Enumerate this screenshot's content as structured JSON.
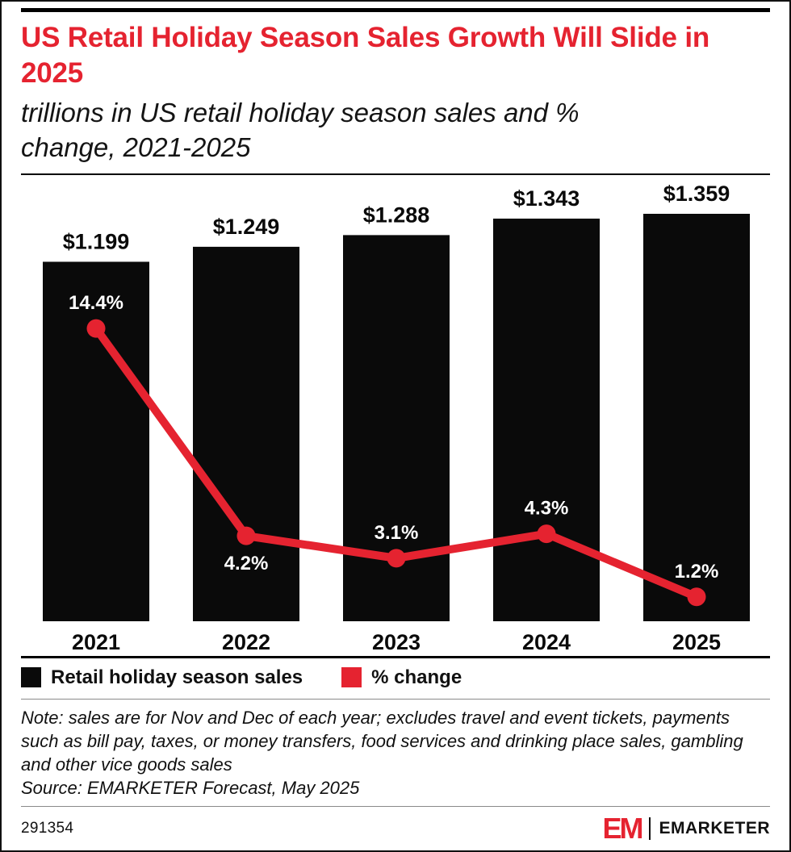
{
  "header": {
    "title": "US Retail Holiday Season Sales Growth Will Slide in 2025",
    "subtitle": "trillions in US retail holiday season sales and % change, 2021-2025"
  },
  "chart_data": {
    "type": "bar",
    "title": "US Retail Holiday Season Sales Growth Will Slide in 2025",
    "subtitle": "trillions in US retail holiday season sales and % change, 2021-2025",
    "categories": [
      "2021",
      "2022",
      "2023",
      "2024",
      "2025"
    ],
    "series": [
      {
        "name": "Retail holiday season sales",
        "type": "bar",
        "unit": "trillions of US dollars",
        "values": [
          1.199,
          1.249,
          1.288,
          1.343,
          1.359
        ],
        "labels": [
          "$1.199",
          "$1.249",
          "$1.288",
          "$1.343",
          "$1.359"
        ],
        "color": "#0a0a0a"
      },
      {
        "name": "% change",
        "type": "line",
        "unit": "percent",
        "values": [
          14.4,
          4.2,
          3.1,
          4.3,
          1.2
        ],
        "labels": [
          "14.4%",
          "4.2%",
          "3.1%",
          "4.3%",
          "1.2%"
        ],
        "label_positions": [
          "above",
          "below",
          "above",
          "above",
          "above"
        ],
        "color": "#e52330"
      }
    ],
    "ylim_bars": [
      0,
      1.4
    ],
    "grid": false,
    "legend_position": "bottom"
  },
  "legend": {
    "items": [
      {
        "label": "Retail holiday season sales",
        "color": "#0a0a0a"
      },
      {
        "label": "% change",
        "color": "#e52330"
      }
    ]
  },
  "note": {
    "note_text": "Note: sales are for Nov and Dec of each year; excludes travel and event tickets, payments such as bill pay, taxes, or money transfers, food services and drinking place sales, gambling and other vice goods sales",
    "source_text": "Source: EMARKETER Forecast, May 2025"
  },
  "footer": {
    "chart_id": "291354",
    "logo_monogram": "EM",
    "brand_name": "EMARKETER"
  },
  "colors": {
    "accent_red": "#e52330",
    "bar_black": "#0a0a0a",
    "title_red": "#e52330"
  }
}
